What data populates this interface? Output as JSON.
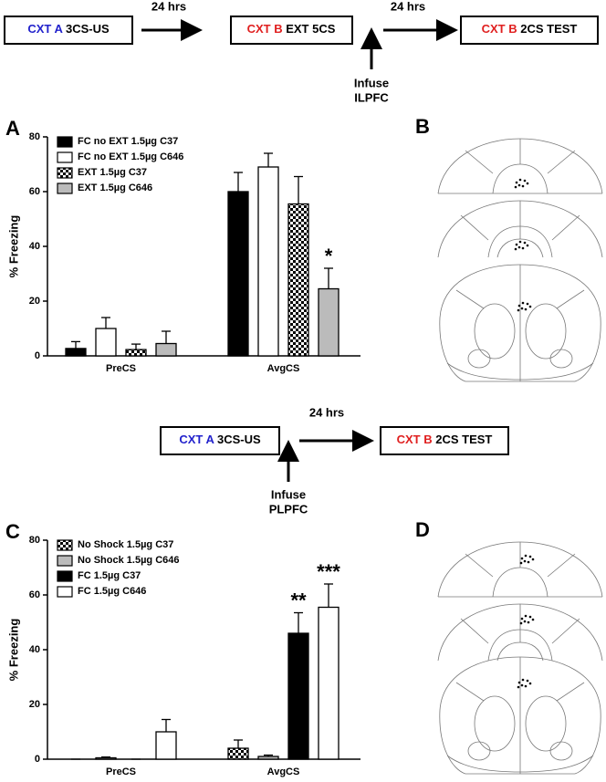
{
  "protocols": [
    {
      "steps": [
        {
          "context": "CXT A",
          "text": "3CS-US"
        },
        {
          "context": "CXT B",
          "text": "EXT 5CS"
        },
        {
          "context": "CXT B",
          "text": "2CS TEST"
        }
      ],
      "intervals": [
        "24 hrs",
        "24 hrs"
      ],
      "infuse": [
        "Infuse",
        "ILPFC"
      ]
    },
    {
      "steps": [
        {
          "context": "CXT A",
          "text": "3CS-US"
        },
        {
          "context": "CXT B",
          "text": "2CS TEST"
        }
      ],
      "intervals": [
        "24 hrs"
      ],
      "infuse": [
        "Infuse",
        "PLPFC"
      ]
    }
  ],
  "diagrams": [
    {
      "label": "B"
    },
    {
      "label": "D"
    }
  ],
  "chart_data": [
    {
      "type": "bar",
      "panel": "A",
      "y_label": "% Freezing",
      "categories": [
        "PreCS",
        "AvgCS"
      ],
      "ylim": [
        0,
        80
      ],
      "yticks": [
        0,
        20,
        40,
        60,
        80
      ],
      "series": [
        {
          "name": "FC no EXT 1.5µg C37",
          "color": "#000000",
          "values": [
            2.7,
            60
          ],
          "errors": [
            2.5,
            7
          ],
          "labels": [
            null,
            null
          ]
        },
        {
          "name": "FC no EXT 1.5µg C646",
          "color": "#ffffff",
          "values": [
            10,
            69
          ],
          "errors": [
            4,
            5
          ],
          "labels": [
            null,
            null
          ]
        },
        {
          "name": "EXT 1.5µg C37",
          "color": "checker",
          "values": [
            2.3,
            55.5
          ],
          "errors": [
            2,
            10
          ],
          "labels": [
            null,
            null
          ]
        },
        {
          "name": "EXT 1.5µg C646",
          "color": "#bbbbbb",
          "values": [
            4.5,
            24.5
          ],
          "errors": [
            4.5,
            7.5
          ],
          "labels": [
            null,
            "*"
          ]
        }
      ]
    },
    {
      "type": "bar",
      "panel": "C",
      "y_label": "% Freezing",
      "categories": [
        "PreCS",
        "AvgCS"
      ],
      "ylim": [
        0,
        80
      ],
      "yticks": [
        0,
        20,
        40,
        60,
        80
      ],
      "series": [
        {
          "name": "No Shock 1.5µg C37",
          "color": "checker",
          "values": [
            0,
            4
          ],
          "errors": [
            0,
            3
          ],
          "labels": [
            null,
            null
          ]
        },
        {
          "name": "No Shock 1.5µg C646",
          "color": "#bbbbbb",
          "values": [
            0.5,
            1
          ],
          "errors": [
            0.3,
            0.5
          ],
          "labels": [
            null,
            null
          ]
        },
        {
          "name": "FC 1.5µg C37",
          "color": "#000000",
          "values": [
            0,
            46
          ],
          "errors": [
            0,
            7.5
          ],
          "labels": [
            null,
            "**"
          ]
        },
        {
          "name": "FC 1.5µg C646",
          "color": "#ffffff",
          "values": [
            10,
            55.5
          ],
          "errors": [
            4.5,
            8.5
          ],
          "labels": [
            null,
            "***"
          ]
        }
      ]
    }
  ]
}
